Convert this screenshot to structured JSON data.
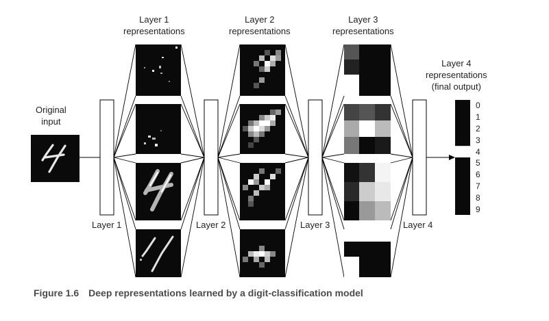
{
  "labels": {
    "original_input": [
      "Original",
      "input"
    ],
    "layer1_repr": [
      "Layer 1",
      "representations"
    ],
    "layer2_repr": [
      "Layer 2",
      "representations"
    ],
    "layer3_repr": [
      "Layer 3",
      "representations"
    ],
    "layer4_repr": [
      "Layer 4",
      "representations",
      "(final output)"
    ],
    "layer1": "Layer 1",
    "layer2": "Layer 2",
    "layer3": "Layer 3",
    "layer4": "Layer 4"
  },
  "output_digits": [
    "0",
    "1",
    "2",
    "3",
    "4",
    "5",
    "6",
    "7",
    "8",
    "9"
  ],
  "predicted_digit_index": 4,
  "caption": {
    "number": "Figure 1.6",
    "text": "Deep representations learned by a digit-classification model"
  },
  "colors": {
    "map_background": "#0a0a0a",
    "stroke": "#000000",
    "caption": "#4a4a4a"
  }
}
